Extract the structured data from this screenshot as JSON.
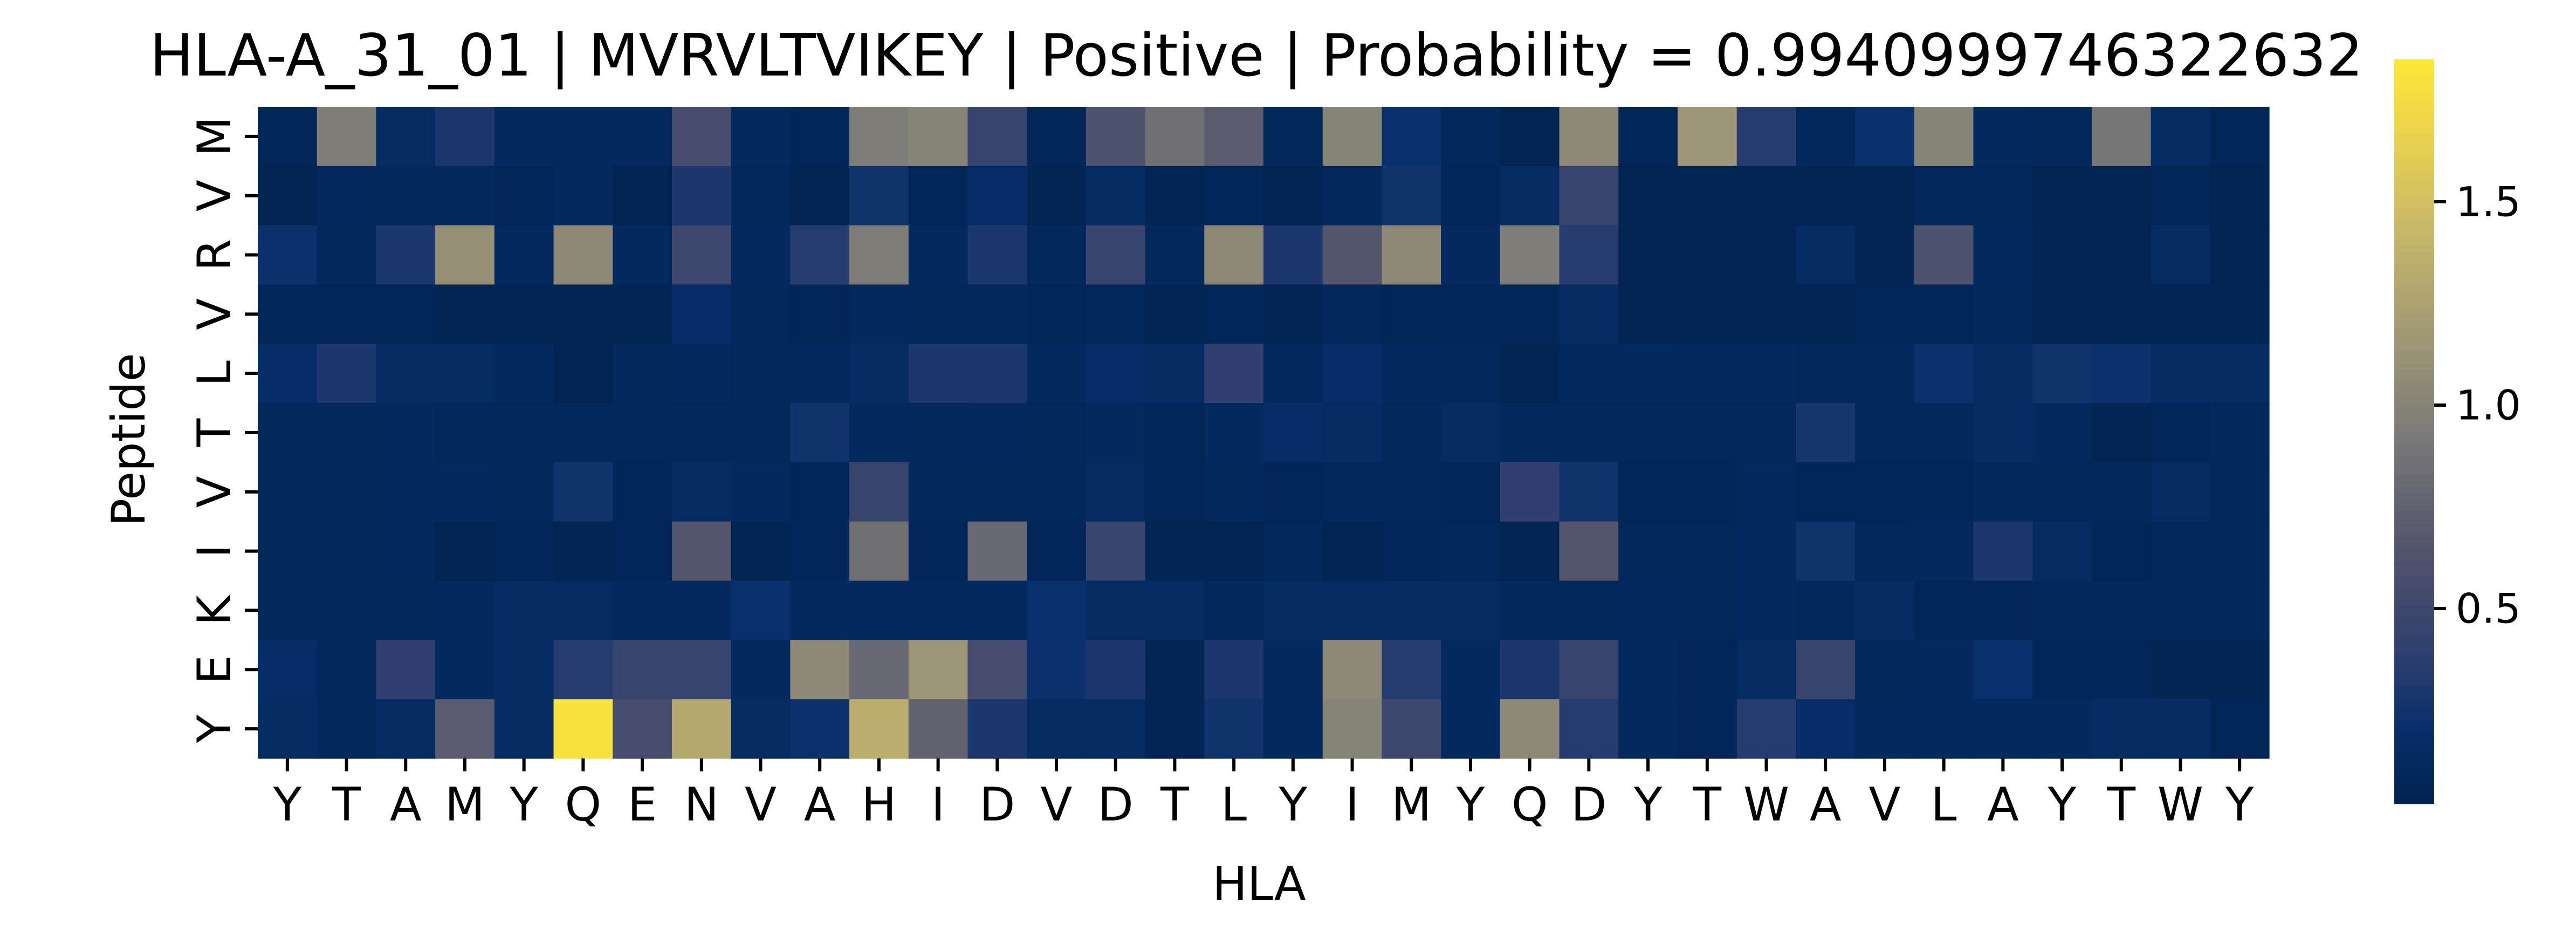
{
  "chart_data": {
    "type": "heatmap",
    "title": "HLA-A_31_01 | MVRVLTVIKEY | Positive | Probability = 0.9940999746322632",
    "xlabel": "HLA",
    "ylabel": "Peptide",
    "x_categories": [
      "Y",
      "T",
      "A",
      "M",
      "Y",
      "Q",
      "E",
      "N",
      "V",
      "A",
      "H",
      "I",
      "D",
      "V",
      "D",
      "T",
      "L",
      "Y",
      "I",
      "M",
      "Y",
      "Q",
      "D",
      "Y",
      "T",
      "W",
      "A",
      "V",
      "L",
      "A",
      "Y",
      "T",
      "W",
      "Y"
    ],
    "y_categories": [
      "M",
      "V",
      "R",
      "V",
      "L",
      "T",
      "V",
      "I",
      "K",
      "E",
      "Y"
    ],
    "values": [
      [
        0.08,
        0.95,
        0.15,
        0.3,
        0.12,
        0.12,
        0.12,
        0.55,
        0.12,
        0.08,
        0.95,
        1.0,
        0.45,
        0.08,
        0.6,
        0.85,
        0.7,
        0.1,
        1.0,
        0.2,
        0.1,
        0.05,
        1.05,
        0.08,
        1.15,
        0.35,
        0.1,
        0.2,
        1.0,
        0.12,
        0.1,
        0.9,
        0.15,
        0.08
      ],
      [
        0.05,
        0.12,
        0.1,
        0.1,
        0.08,
        0.12,
        0.05,
        0.3,
        0.1,
        0.05,
        0.25,
        0.08,
        0.18,
        0.05,
        0.15,
        0.05,
        0.08,
        0.05,
        0.1,
        0.25,
        0.08,
        0.15,
        0.45,
        0.05,
        0.05,
        0.05,
        0.05,
        0.05,
        0.1,
        0.1,
        0.05,
        0.05,
        0.08,
        0.05
      ],
      [
        0.22,
        0.1,
        0.3,
        1.1,
        0.12,
        1.05,
        0.12,
        0.5,
        0.12,
        0.35,
        0.95,
        0.12,
        0.3,
        0.1,
        0.45,
        0.1,
        1.05,
        0.3,
        0.65,
        1.05,
        0.12,
        0.95,
        0.35,
        0.05,
        0.05,
        0.05,
        0.15,
        0.05,
        0.6,
        0.12,
        0.05,
        0.05,
        0.15,
        0.05
      ],
      [
        0.08,
        0.08,
        0.08,
        0.06,
        0.06,
        0.06,
        0.06,
        0.18,
        0.1,
        0.08,
        0.12,
        0.1,
        0.1,
        0.08,
        0.1,
        0.06,
        0.08,
        0.06,
        0.1,
        0.08,
        0.08,
        0.08,
        0.15,
        0.05,
        0.06,
        0.06,
        0.06,
        0.08,
        0.08,
        0.1,
        0.06,
        0.06,
        0.06,
        0.06
      ],
      [
        0.18,
        0.3,
        0.15,
        0.15,
        0.12,
        0.05,
        0.1,
        0.12,
        0.1,
        0.12,
        0.15,
        0.3,
        0.3,
        0.12,
        0.18,
        0.15,
        0.4,
        0.12,
        0.18,
        0.12,
        0.1,
        0.06,
        0.12,
        0.12,
        0.12,
        0.12,
        0.1,
        0.1,
        0.22,
        0.15,
        0.25,
        0.22,
        0.15,
        0.15
      ],
      [
        0.1,
        0.1,
        0.12,
        0.1,
        0.1,
        0.1,
        0.1,
        0.1,
        0.1,
        0.25,
        0.12,
        0.1,
        0.12,
        0.1,
        0.12,
        0.08,
        0.12,
        0.18,
        0.15,
        0.1,
        0.15,
        0.1,
        0.1,
        0.1,
        0.1,
        0.1,
        0.28,
        0.1,
        0.1,
        0.15,
        0.12,
        0.06,
        0.08,
        0.1
      ],
      [
        0.1,
        0.1,
        0.12,
        0.12,
        0.1,
        0.25,
        0.08,
        0.15,
        0.12,
        0.08,
        0.45,
        0.1,
        0.1,
        0.1,
        0.15,
        0.08,
        0.1,
        0.08,
        0.1,
        0.1,
        0.08,
        0.4,
        0.25,
        0.08,
        0.08,
        0.12,
        0.08,
        0.08,
        0.08,
        0.1,
        0.1,
        0.1,
        0.15,
        0.1
      ],
      [
        0.1,
        0.1,
        0.12,
        0.05,
        0.08,
        0.05,
        0.08,
        0.65,
        0.06,
        0.08,
        0.85,
        0.08,
        0.8,
        0.08,
        0.45,
        0.06,
        0.05,
        0.1,
        0.05,
        0.08,
        0.1,
        0.05,
        0.65,
        0.1,
        0.1,
        0.12,
        0.25,
        0.1,
        0.12,
        0.3,
        0.15,
        0.08,
        0.1,
        0.1
      ],
      [
        0.1,
        0.1,
        0.1,
        0.12,
        0.15,
        0.15,
        0.12,
        0.12,
        0.2,
        0.12,
        0.12,
        0.12,
        0.12,
        0.2,
        0.15,
        0.15,
        0.1,
        0.15,
        0.15,
        0.15,
        0.15,
        0.1,
        0.1,
        0.12,
        0.1,
        0.12,
        0.1,
        0.15,
        0.08,
        0.08,
        0.1,
        0.1,
        0.1,
        0.1
      ],
      [
        0.18,
        0.1,
        0.4,
        0.12,
        0.15,
        0.35,
        0.45,
        0.45,
        0.12,
        1.05,
        0.8,
        1.15,
        0.55,
        0.22,
        0.3,
        0.06,
        0.3,
        0.12,
        1.05,
        0.35,
        0.12,
        0.3,
        0.45,
        0.12,
        0.08,
        0.15,
        0.45,
        0.1,
        0.12,
        0.2,
        0.08,
        0.08,
        0.06,
        0.06
      ],
      [
        0.15,
        0.1,
        0.15,
        0.7,
        0.15,
        1.8,
        0.55,
        1.3,
        0.15,
        0.22,
        1.35,
        0.75,
        0.3,
        0.15,
        0.15,
        0.06,
        0.25,
        0.12,
        1.0,
        0.5,
        0.12,
        1.05,
        0.35,
        0.12,
        0.08,
        0.35,
        0.18,
        0.12,
        0.12,
        0.12,
        0.12,
        0.15,
        0.15,
        0.08
      ]
    ],
    "vmin": 0.02,
    "vmax": 1.85,
    "colormap": "cividis",
    "colorbar_ticks": [
      0.5,
      1.0,
      1.5
    ],
    "colorbar_tick_labels": [
      "0.5",
      "1.0",
      "1.5"
    ],
    "grid": false,
    "legend": "colorbar-right"
  }
}
